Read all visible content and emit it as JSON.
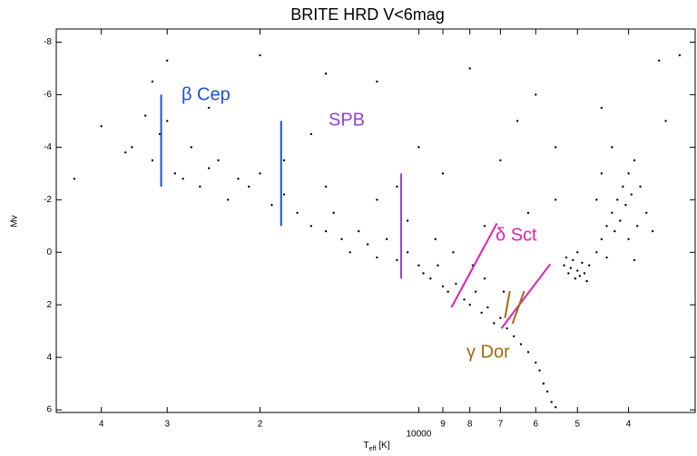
{
  "chart_data": {
    "type": "scatter",
    "title": "BRITE HRD V<6mag",
    "xlabel": {
      "main": "T",
      "sub": "eff",
      "unit": "[K]"
    },
    "ylabel": "Mv",
    "xscale": "log",
    "xlim": [
      48700,
      2990
    ],
    "ylim": [
      6.1,
      -8.5
    ],
    "xticks": [
      {
        "value": 40000,
        "label": "4"
      },
      {
        "value": 30000,
        "label": "3"
      },
      {
        "value": 20000,
        "label": "2"
      },
      10000,
      {
        "value": 9000,
        "label": "9"
      },
      {
        "value": 8000,
        "label": "8"
      },
      {
        "value": 7000,
        "label": "7"
      },
      {
        "value": 6000,
        "label": "6"
      },
      {
        "value": 5000,
        "label": "5"
      },
      {
        "value": 4000,
        "label": "4"
      }
    ],
    "yticks": [
      -8,
      -6,
      -4,
      -2,
      0,
      2,
      4,
      6
    ],
    "color": "#000000",
    "x": [
      35000,
      32000,
      30000,
      29000,
      31000,
      27000,
      25000,
      28000,
      33000,
      36000,
      26000,
      24000,
      22000,
      23000,
      21000,
      20000,
      19000,
      18000,
      17000,
      16000,
      15000,
      14500,
      14000,
      13500,
      13000,
      12500,
      12000,
      11500,
      11000,
      10500,
      10000,
      9800,
      9500,
      9200,
      9000,
      8800,
      8500,
      8200,
      8000,
      7800,
      7600,
      7400,
      7200,
      7000,
      6800,
      6600,
      6400,
      6200,
      6000,
      5900,
      5800,
      5700,
      5600,
      5500,
      9300,
      8600,
      7900,
      12000,
      15000,
      18000,
      10500,
      7500,
      6900,
      5300,
      5200,
      5100,
      5000,
      4950,
      4900,
      5050,
      5150,
      4850,
      5250,
      4800,
      5000,
      4750,
      4600,
      4500,
      4400,
      4300,
      4200,
      4100,
      4000,
      3900,
      4400,
      4250,
      4150,
      4050,
      3950,
      3850,
      4500,
      4300,
      4600,
      3800,
      3700,
      3600,
      4000,
      3900,
      40000,
      45000,
      30000,
      32000,
      20000,
      15000,
      8000,
      12000,
      6500,
      5500,
      6000,
      4500,
      3500,
      10000,
      9000,
      7000,
      16000,
      25000,
      11000,
      3200,
      3400,
      7500,
      5500,
      6200
    ],
    "y": [
      -4,
      -3.5,
      -5,
      -3,
      -4.5,
      -4,
      -3.2,
      -2.8,
      -5.2,
      -3.8,
      -2.5,
      -3.5,
      -2.8,
      -2,
      -2.5,
      -3,
      -1.8,
      -2.2,
      -1.5,
      -1,
      -0.8,
      -1.5,
      -0.5,
      0,
      -0.8,
      -0.3,
      0.2,
      -0.5,
      0.3,
      0,
      0.5,
      0.8,
      1,
      0.5,
      1.3,
      1.5,
      1.2,
      1.8,
      2,
      1.5,
      2.3,
      2.1,
      2.7,
      2.5,
      2.9,
      3.2,
      3.5,
      3.8,
      4.2,
      4.5,
      5,
      5.3,
      5.7,
      5.9,
      -0.5,
      0,
      0.5,
      -2,
      -2.5,
      -3.5,
      -1.2,
      1,
      1.5,
      0.5,
      0.8,
      0.3,
      0.7,
      0.9,
      0.4,
      1,
      0.6,
      0.8,
      0.2,
      1.1,
      0,
      0.5,
      0,
      -0.5,
      -1,
      -1.5,
      -2,
      -2.5,
      -3,
      -3.5,
      0.2,
      -0.8,
      -1.2,
      -1.8,
      -2.2,
      -1,
      -3,
      -4,
      -2,
      -2.5,
      -1.5,
      -0.8,
      -0.5,
      0.3,
      -4.8,
      -2.8,
      -7.3,
      -6.5,
      -7.5,
      -6.8,
      -7,
      -6.5,
      -5,
      -4,
      -6,
      -5.5,
      -7.3,
      -4,
      -3,
      -3.5,
      -4.5,
      -5.5,
      -2.5,
      -7.5,
      -5,
      -1,
      -2,
      -1.5
    ],
    "annotations": [
      {
        "text": "β Cep",
        "color": "#1f4fd8",
        "lines": [
          {
            "x": [
              30800,
              30800
            ],
            "y": [
              -6,
              -2.5
            ]
          },
          {
            "x": [
              18240,
              18240
            ],
            "y": [
              -5,
              -1
            ]
          }
        ]
      },
      {
        "text": "SPB",
        "color": "#9b3fd1",
        "lines": [
          {
            "x": [
              10800,
              10800
            ],
            "y": [
              -3,
              1
            ]
          }
        ]
      },
      {
        "text": "δ Sct",
        "color": "#e020b0",
        "lines": [
          {
            "x": [
              8670,
              7110
            ],
            "y": [
              2.1,
              -1.1
            ]
          },
          {
            "x": [
              6970,
              5630
            ],
            "y": [
              2.9,
              0.45
            ]
          }
        ]
      },
      {
        "text": "γ Dor",
        "color": "#a06a10",
        "lines": [
          {
            "x": [
              6860,
              6720
            ],
            "y": [
              2.5,
              1.48
            ]
          },
          {
            "x": [
              6640,
              6310
            ],
            "y": [
              2.72,
              1.48
            ]
          }
        ]
      }
    ]
  }
}
